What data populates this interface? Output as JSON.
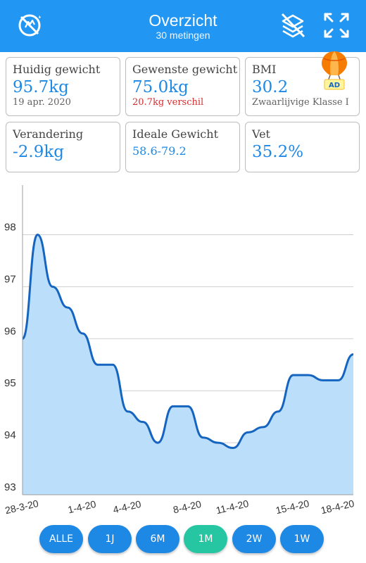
{
  "header": {
    "title": "Overzicht",
    "subtitle": "30 metingen",
    "left_icon": "no-hand-icon",
    "right_icons": [
      "hide-layers-icon",
      "fullscreen-icon"
    ]
  },
  "cards": {
    "current": {
      "label": "Huidig gewicht",
      "value": "95.7kg",
      "sub": "19 apr. 2020"
    },
    "target": {
      "label": "Gewenste gewicht",
      "value": "75.0kg",
      "sub": "20.7kg verschil"
    },
    "bmi": {
      "label": "BMI",
      "value": "30.2",
      "sub": "Zwaarlijvige Klasse I"
    },
    "change": {
      "label": "Verandering",
      "value": "-2.9kg"
    },
    "ideal": {
      "label": "Ideale Gewicht",
      "value": "58.6-79.2"
    },
    "fat": {
      "label": "Vet",
      "value": "35.2%"
    }
  },
  "ad_badge": {
    "text": "AD",
    "icon": "hot-air-balloon-icon"
  },
  "chart_data": {
    "type": "area",
    "x": [
      "28-3-20",
      "29-3-20",
      "30-3-20",
      "31-3-20",
      "1-4-20",
      "2-4-20",
      "3-4-20",
      "4-4-20",
      "5-4-20",
      "6-4-20",
      "7-4-20",
      "8-4-20",
      "9-4-20",
      "10-4-20",
      "11-4-20",
      "12-4-20",
      "13-4-20",
      "14-4-20",
      "15-4-20",
      "16-4-20",
      "17-4-20",
      "18-4-20",
      "19-4-20"
    ],
    "values": [
      96.0,
      98.0,
      97.0,
      96.6,
      96.1,
      95.5,
      95.5,
      94.6,
      94.4,
      94.0,
      94.7,
      94.7,
      94.1,
      94.0,
      93.9,
      94.2,
      94.3,
      94.6,
      95.3,
      95.3,
      95.2,
      95.2,
      95.7
    ],
    "xticks": [
      "28-3-20",
      "1-4-20",
      "4-4-20",
      "8-4-20",
      "11-4-20",
      "15-4-20",
      "18-4-20"
    ],
    "yticks": [
      93,
      94,
      95,
      96,
      97,
      98
    ],
    "ylim": [
      93,
      98.9
    ],
    "grid": true,
    "line_color": "#1565c0",
    "fill_color": "#bbdefb"
  },
  "ranges": {
    "items": [
      "ALLE",
      "1J",
      "6M",
      "1M",
      "2W",
      "1W"
    ],
    "active": "1M"
  }
}
